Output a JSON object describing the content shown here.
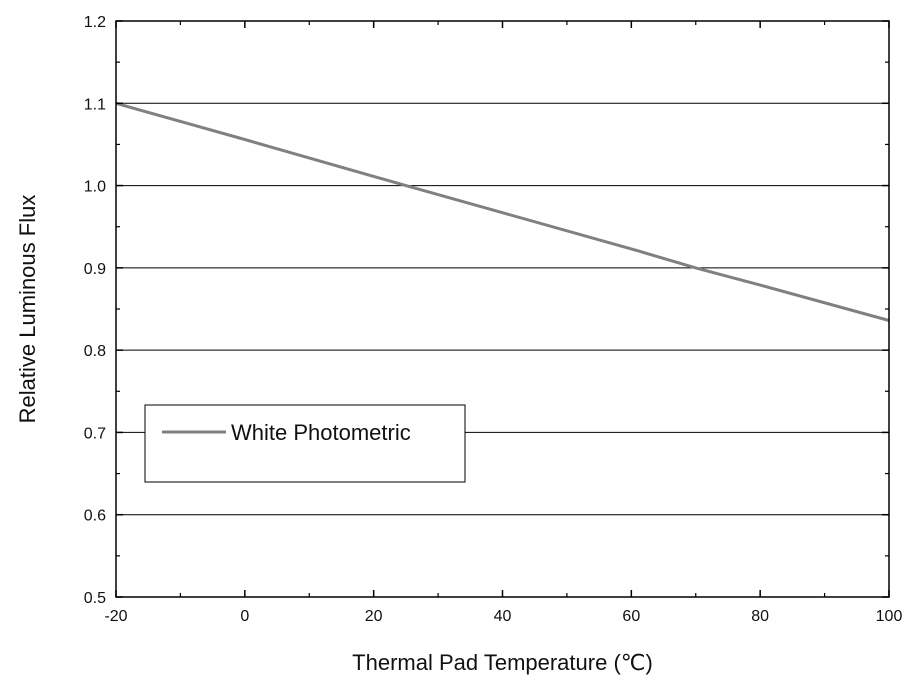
{
  "chart_data": {
    "type": "line",
    "title": "",
    "xlabel": "Thermal Pad Temperature (℃)",
    "ylabel": "Relative Luminous Flux",
    "xlim": [
      -20,
      100
    ],
    "ylim": [
      0.5,
      1.2
    ],
    "x_ticks": [
      -20,
      0,
      20,
      40,
      60,
      80,
      100
    ],
    "y_ticks": [
      0.5,
      0.6,
      0.7,
      0.8,
      0.9,
      1.0,
      1.1,
      1.2
    ],
    "x_tick_labels": [
      "-20",
      "0",
      "20",
      "40",
      "60",
      "80",
      "100"
    ],
    "y_tick_labels": [
      "0.5",
      "0.6",
      "0.7",
      "0.8",
      "0.9",
      "1.0",
      "1.1",
      "1.2"
    ],
    "grid": "horizontal",
    "legend_position": "left",
    "series": [
      {
        "name": "White Photometric",
        "color": "#808080",
        "x": [
          -20,
          0,
          25,
          40,
          60,
          70,
          80,
          100
        ],
        "y": [
          1.1,
          1.056,
          1.0,
          0.967,
          0.923,
          0.9,
          0.879,
          0.836
        ]
      }
    ]
  }
}
